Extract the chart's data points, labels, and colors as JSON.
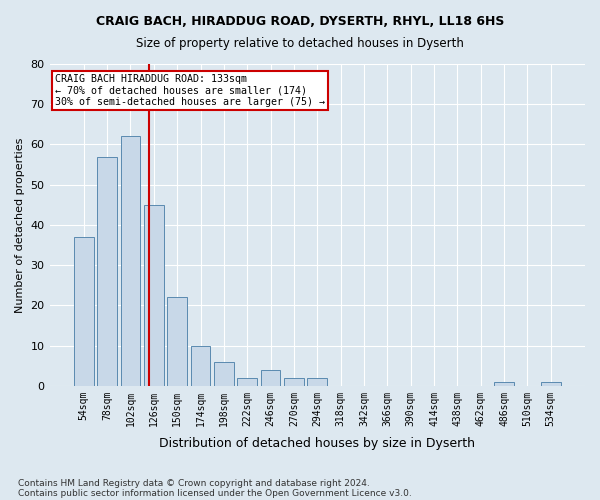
{
  "title1": "CRAIG BACH, HIRADDUG ROAD, DYSERTH, RHYL, LL18 6HS",
  "title2": "Size of property relative to detached houses in Dyserth",
  "xlabel": "Distribution of detached houses by size in Dyserth",
  "ylabel": "Number of detached properties",
  "footnote1": "Contains HM Land Registry data © Crown copyright and database right 2024.",
  "footnote2": "Contains public sector information licensed under the Open Government Licence v3.0.",
  "categories": [
    "54sqm",
    "78sqm",
    "102sqm",
    "126sqm",
    "150sqm",
    "174sqm",
    "198sqm",
    "222sqm",
    "246sqm",
    "270sqm",
    "294sqm",
    "318sqm",
    "342sqm",
    "366sqm",
    "390sqm",
    "414sqm",
    "438sqm",
    "462sqm",
    "486sqm",
    "510sqm",
    "534sqm"
  ],
  "values": [
    37,
    57,
    62,
    45,
    22,
    10,
    6,
    2,
    4,
    2,
    2,
    0,
    0,
    0,
    0,
    0,
    0,
    0,
    1,
    0,
    1
  ],
  "bar_color": "#c8d8e8",
  "bar_edge_color": "#5a8ab0",
  "ylim": [
    0,
    80
  ],
  "yticks": [
    0,
    10,
    20,
    30,
    40,
    50,
    60,
    70,
    80
  ],
  "property_label": "CRAIG BACH HIRADDUG ROAD: 133sqm",
  "annotation_line1": "← 70% of detached houses are smaller (174)",
  "annotation_line2": "30% of semi-detached houses are larger (75) →",
  "vline_color": "#cc0000",
  "annotation_box_color": "#ffffff",
  "annotation_box_edge": "#cc0000",
  "background_color": "#dde8f0",
  "plot_bg_color": "#dde8f0",
  "grid_color": "#ffffff",
  "vline_x": 2.79
}
